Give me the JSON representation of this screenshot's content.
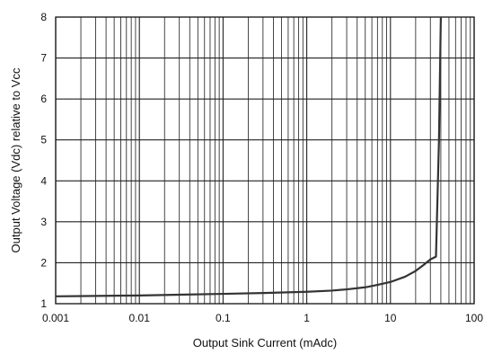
{
  "chart_data": {
    "type": "line",
    "title": "",
    "xlabel": "Output Sink Current (mAdc)",
    "ylabel": "Output Voltage (Vdc) relative to Vcc",
    "x_scale": "log",
    "xlim": [
      0.001,
      100
    ],
    "ylim": [
      1,
      8
    ],
    "x_tick_labels": [
      "0.001",
      "0.01",
      "0.1",
      "1",
      "10",
      "100"
    ],
    "y_tick_labels": [
      "1",
      "2",
      "3",
      "4",
      "5",
      "6",
      "7",
      "8"
    ],
    "grid": true,
    "legend": "none",
    "line_color": "#333333",
    "series": [
      {
        "x": [
          0.001,
          0.003,
          0.01,
          0.03,
          0.1,
          0.3,
          1,
          2,
          3,
          5,
          7,
          10,
          15,
          20,
          25,
          30,
          35,
          38,
          40
        ],
        "y": [
          1.18,
          1.19,
          1.2,
          1.22,
          1.24,
          1.26,
          1.29,
          1.32,
          1.35,
          1.4,
          1.46,
          1.53,
          1.66,
          1.8,
          1.95,
          2.08,
          2.15,
          5.0,
          8.0
        ]
      }
    ]
  }
}
